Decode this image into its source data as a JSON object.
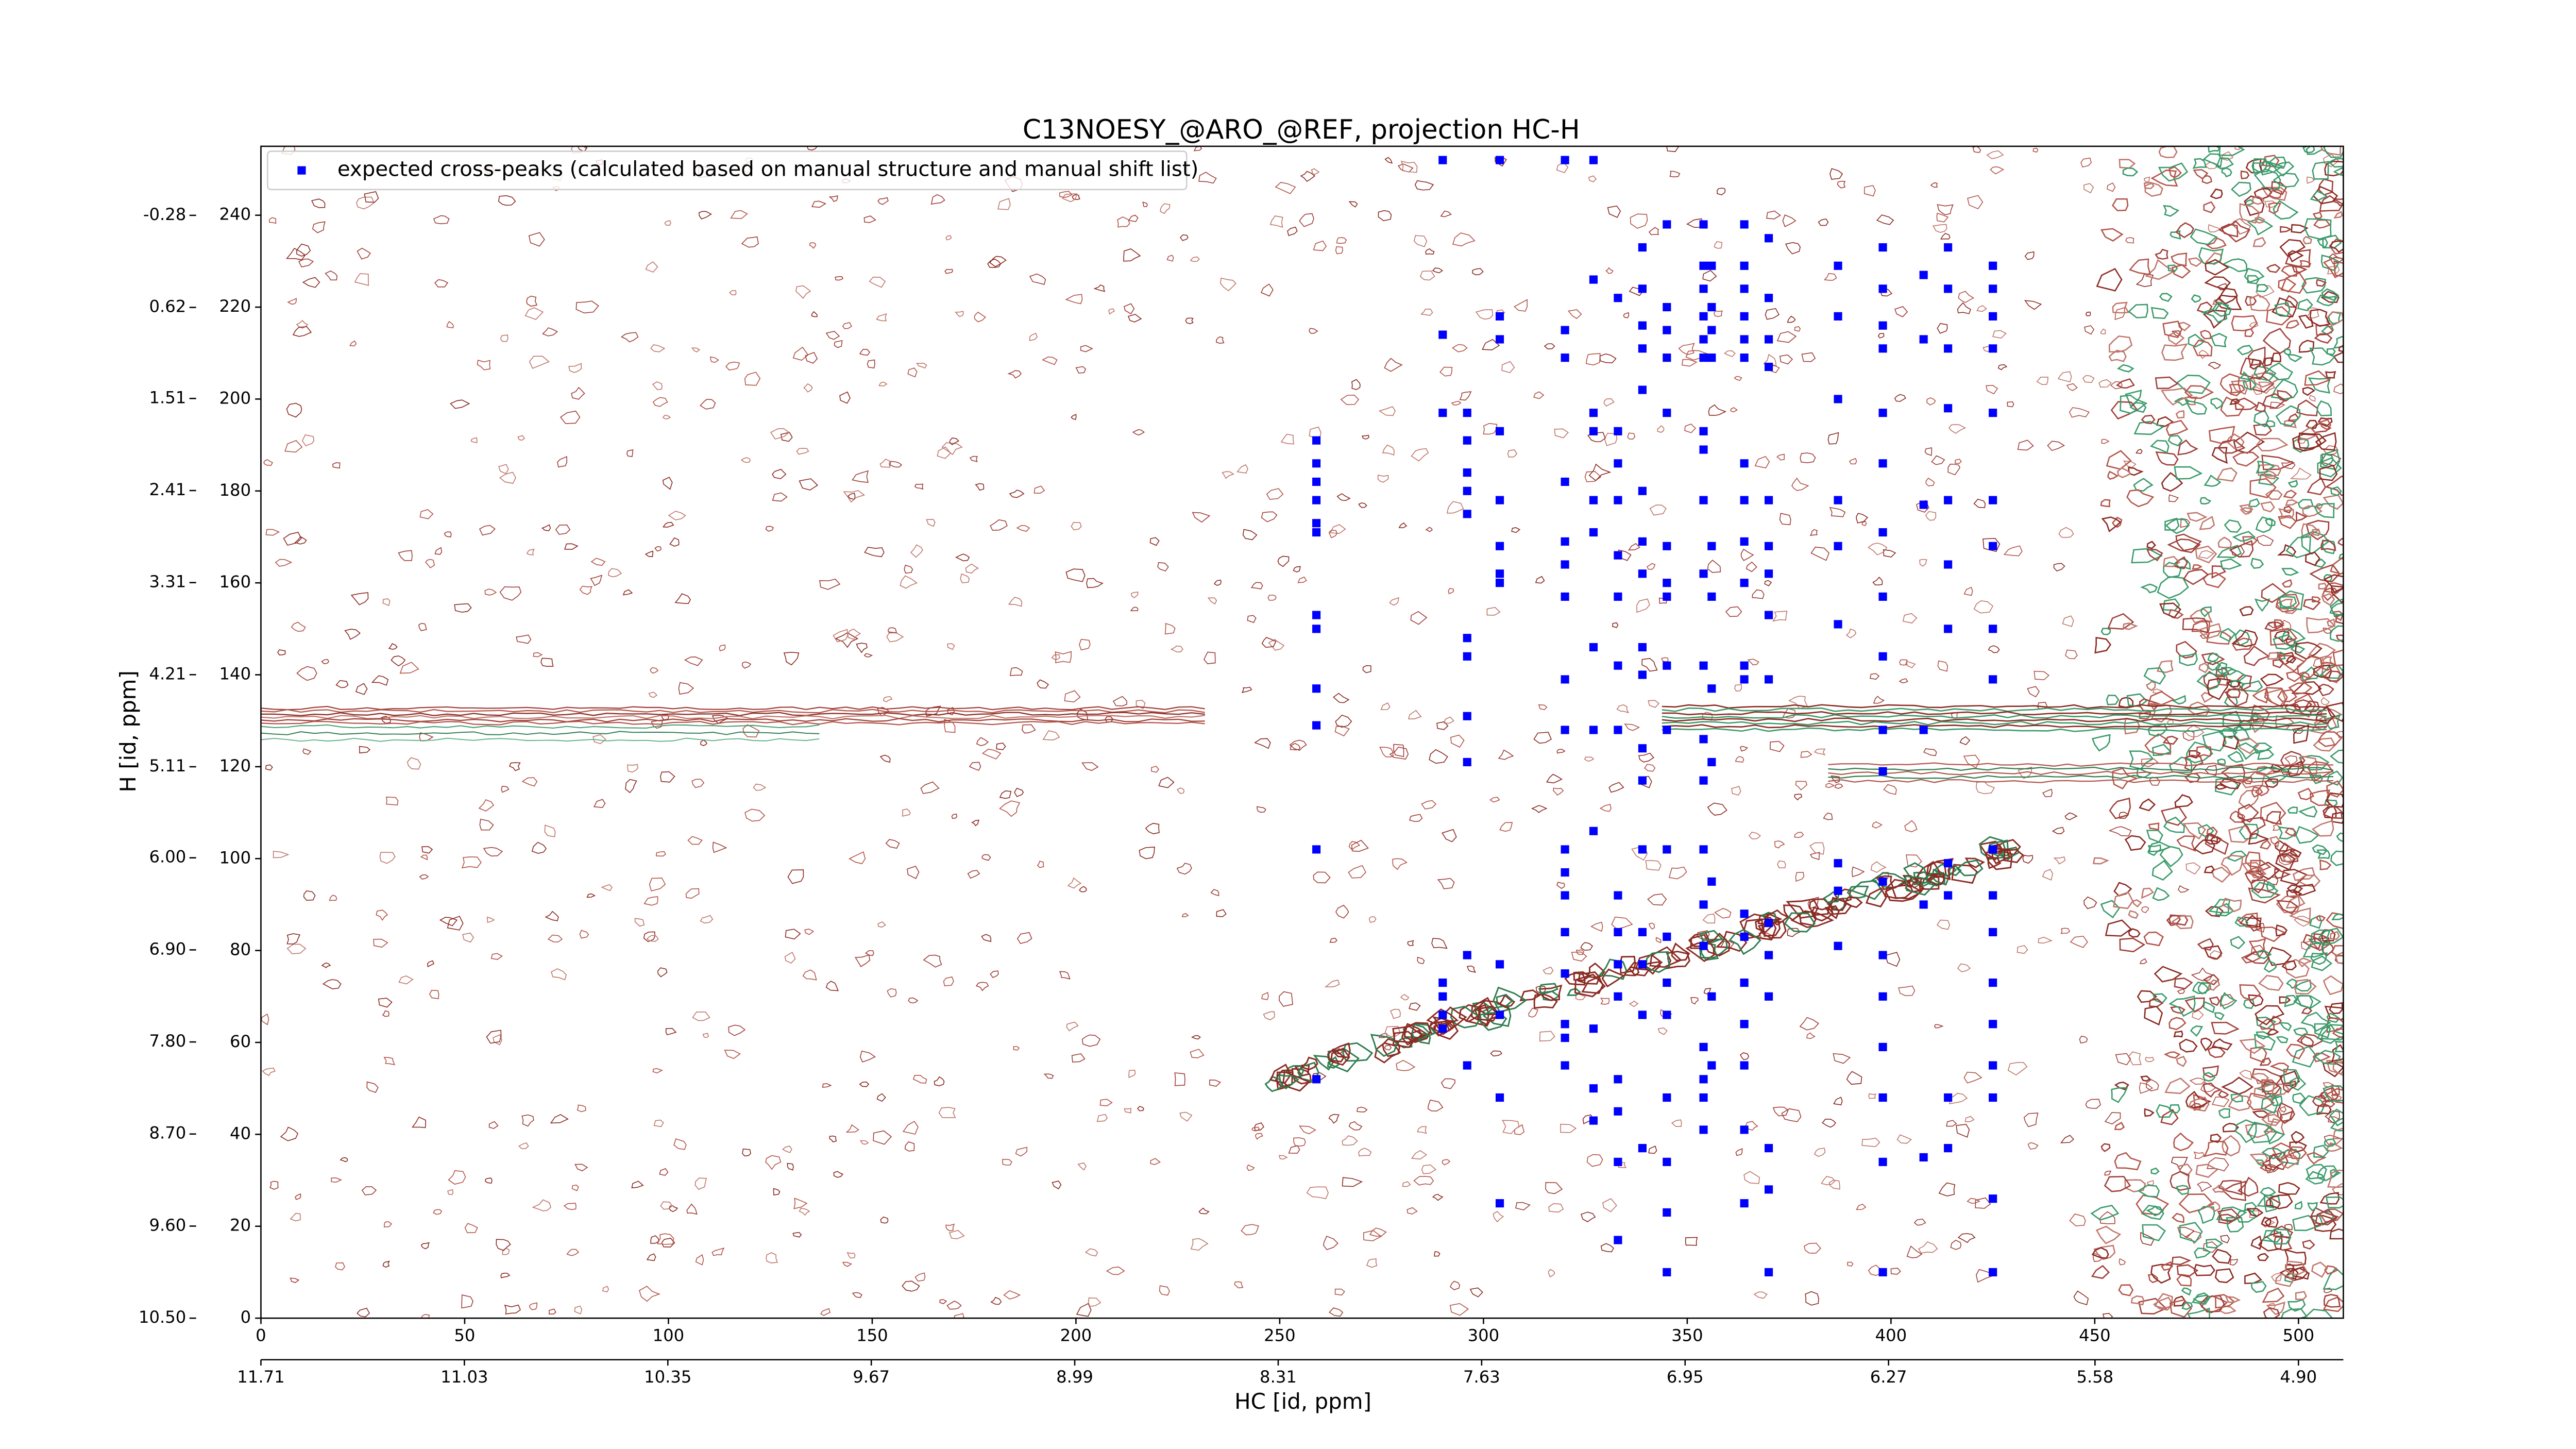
{
  "chart_data": {
    "type": "scatter",
    "title": "C13NOESY_@ARO_@REF, projection HC-H",
    "x_label": "HC [id, ppm]",
    "y_label": "H [id, ppm]",
    "xlim": [
      0,
      511
    ],
    "ylim": [
      0,
      255
    ],
    "xticks": [
      0,
      50,
      100,
      150,
      200,
      250,
      300,
      350,
      400,
      450,
      500
    ],
    "yticks": [
      0,
      20,
      40,
      60,
      80,
      100,
      120,
      140,
      160,
      180,
      200,
      220,
      240
    ],
    "x2lim": [
      11.71,
      4.75
    ],
    "x2ticks": [
      11.71,
      11.03,
      10.35,
      9.67,
      8.99,
      8.31,
      7.63,
      6.95,
      6.27,
      5.58,
      {
        "value": 4.9,
        "label": "4.90"
      }
    ],
    "y2lim": [
      10.5,
      -0.955
    ],
    "y2ticks": [
      {
        "value": 10.5,
        "label": "10.50"
      },
      {
        "value": 9.6,
        "label": "9.60"
      },
      {
        "value": 8.7,
        "label": "8.70"
      },
      {
        "value": 7.8,
        "label": "7.80"
      },
      {
        "value": 6.9,
        "label": "6.90"
      },
      {
        "value": 6.0,
        "label": "6.00"
      },
      5.11,
      4.21,
      3.31,
      2.41,
      1.51,
      0.62,
      -0.28
    ],
    "legend": "upper left",
    "series": [
      {
        "name": "expected cross-peaks (calculated based on manual structure and manual shift list)",
        "color": "#0000ff",
        "x": [
          259,
          259,
          259,
          259,
          259,
          259,
          259,
          259,
          259,
          259,
          259,
          259,
          290,
          290,
          290,
          290,
          290,
          290,
          290,
          296,
          296,
          296,
          296,
          296,
          296,
          296,
          296,
          296,
          296,
          296,
          304,
          304,
          304,
          304,
          304,
          304,
          304,
          304,
          304,
          304,
          304,
          304,
          320,
          320,
          320,
          320,
          320,
          320,
          320,
          320,
          320,
          320,
          320,
          320,
          320,
          320,
          320,
          320,
          320,
          327,
          327,
          327,
          327,
          327,
          327,
          327,
          327,
          327,
          327,
          327,
          327,
          333,
          333,
          333,
          333,
          333,
          333,
          333,
          333,
          333,
          333,
          333,
          333,
          333,
          333,
          333,
          333,
          339,
          339,
          339,
          339,
          339,
          339,
          339,
          339,
          339,
          339,
          339,
          339,
          339,
          339,
          339,
          339,
          339,
          345,
          345,
          345,
          345,
          345,
          345,
          345,
          345,
          345,
          345,
          345,
          345,
          345,
          345,
          345,
          345,
          345,
          345,
          354,
          354,
          354,
          354,
          354,
          354,
          354,
          354,
          354,
          354,
          354,
          354,
          354,
          354,
          354,
          354,
          354,
          354,
          354,
          354,
          356,
          356,
          356,
          356,
          356,
          356,
          356,
          356,
          356,
          356,
          356,
          364,
          364,
          364,
          364,
          364,
          364,
          364,
          364,
          364,
          364,
          364,
          364,
          364,
          364,
          364,
          364,
          364,
          364,
          364,
          370,
          370,
          370,
          370,
          370,
          370,
          370,
          370,
          370,
          370,
          370,
          370,
          370,
          370,
          370,
          387,
          387,
          387,
          387,
          387,
          387,
          387,
          387,
          387,
          398,
          398,
          398,
          398,
          398,
          398,
          398,
          398,
          398,
          398,
          398,
          398,
          398,
          398,
          398,
          398,
          398,
          398,
          408,
          408,
          408,
          408,
          408,
          408,
          414,
          414,
          414,
          414,
          414,
          414,
          414,
          414,
          414,
          414,
          414,
          425,
          425,
          425,
          425,
          425,
          425,
          425,
          425,
          425,
          425,
          425,
          425,
          425,
          425,
          425,
          425,
          425,
          425
        ],
        "values": [
          191,
          186,
          182,
          178,
          173,
          171,
          153,
          150,
          137,
          129,
          102,
          52,
          252,
          214,
          197,
          73,
          70,
          66,
          63,
          197,
          191,
          184,
          180,
          175,
          148,
          144,
          131,
          121,
          79,
          55,
          252,
          218,
          213,
          193,
          178,
          168,
          162,
          160,
          77,
          66,
          48,
          25,
          252,
          215,
          209,
          182,
          169,
          164,
          157,
          139,
          128,
          102,
          97,
          92,
          84,
          75,
          64,
          61,
          55,
          252,
          226,
          197,
          193,
          178,
          171,
          146,
          128,
          106,
          63,
          50,
          43,
          222,
          193,
          186,
          178,
          166,
          157,
          142,
          128,
          92,
          84,
          77,
          70,
          52,
          45,
          34,
          17,
          233,
          224,
          216,
          211,
          202,
          180,
          169,
          162,
          146,
          140,
          124,
          117,
          102,
          84,
          77,
          66,
          37,
          238,
          220,
          215,
          209,
          197,
          168,
          160,
          157,
          142,
          128,
          102,
          83,
          73,
          66,
          48,
          34,
          23,
          10,
          238,
          229,
          224,
          218,
          213,
          209,
          193,
          189,
          178,
          162,
          142,
          126,
          117,
          102,
          90,
          81,
          59,
          52,
          48,
          41,
          229,
          220,
          215,
          209,
          168,
          157,
          137,
          121,
          95,
          70,
          55,
          238,
          229,
          224,
          218,
          213,
          209,
          186,
          178,
          169,
          160,
          142,
          139,
          88,
          83,
          73,
          64,
          55,
          41,
          25,
          235,
          222,
          213,
          207,
          178,
          168,
          162,
          153,
          139,
          86,
          79,
          70,
          37,
          28,
          10,
          229,
          218,
          200,
          178,
          168,
          151,
          99,
          93,
          81,
          233,
          224,
          216,
          211,
          197,
          186,
          171,
          157,
          144,
          128,
          119,
          95,
          79,
          70,
          59,
          48,
          34,
          10,
          227,
          213,
          177,
          128,
          90,
          35,
          233,
          224,
          211,
          198,
          178,
          164,
          150,
          99,
          92,
          48,
          37,
          229,
          224,
          218,
          211,
          197,
          178,
          168,
          150,
          139,
          102,
          92,
          84,
          73,
          64,
          55,
          48,
          26,
          10
        ]
      }
    ]
  }
}
